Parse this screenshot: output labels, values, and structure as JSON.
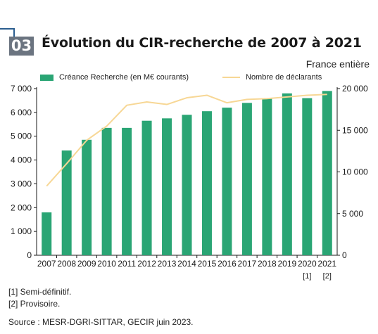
{
  "header": {
    "badge": "03",
    "title": "Évolution du CIR-recherche de 2007 à 2021",
    "scope": "France entière"
  },
  "legend": {
    "bars": "Créance Recherche (en M€ courants)",
    "line": "Nombre de déclarants"
  },
  "colors": {
    "bars": "#2aa574",
    "line": "#f7d795",
    "badge": "#6b7480",
    "accent": "#2a5d8f"
  },
  "chart_data": {
    "type": "bar",
    "categories": [
      "2007",
      "2008",
      "2009",
      "2010",
      "2011",
      "2012",
      "2013",
      "2014",
      "2015",
      "2016",
      "2017",
      "2018",
      "2019",
      "2020",
      "2021"
    ],
    "category_notes": [
      "",
      "",
      "",
      "",
      "",
      "",
      "",
      "",
      "",
      "",
      "",
      "",
      "",
      "[1]",
      "[2]"
    ],
    "series": [
      {
        "name": "Créance Recherche (en M€ courants)",
        "type": "bar",
        "axis": "left",
        "values": [
          1800,
          4400,
          4850,
          5350,
          5350,
          5650,
          5750,
          5900,
          6050,
          6200,
          6400,
          6600,
          6800,
          6600,
          6900
        ]
      },
      {
        "name": "Nombre de déclarants",
        "type": "line",
        "axis": "right",
        "values": [
          8300,
          11000,
          13800,
          15500,
          18000,
          18400,
          18100,
          18900,
          19200,
          18300,
          18700,
          18800,
          19000,
          19200,
          19300
        ]
      }
    ],
    "y_left": {
      "ylim": [
        0,
        7000
      ],
      "ticks": [
        0,
        1000,
        2000,
        3000,
        4000,
        5000,
        6000,
        7000
      ],
      "tick_labels": [
        "0",
        "1 000",
        "2 000",
        "3 000",
        "4 000",
        "5 000",
        "6 000",
        "7 000"
      ]
    },
    "y_right": {
      "ylim": [
        0,
        20000
      ],
      "ticks": [
        0,
        5000,
        10000,
        15000,
        20000
      ],
      "tick_labels": [
        "0",
        "5 000",
        "10 000",
        "15 000",
        "20 000"
      ]
    },
    "grid": false,
    "legend_position": "top"
  },
  "notes": {
    "n1": "[1] Semi-définitif.",
    "n2": "[2] Provisoire.",
    "source": "Source : MESR-DGRI-SITTAR, GECIR juin 2023."
  }
}
